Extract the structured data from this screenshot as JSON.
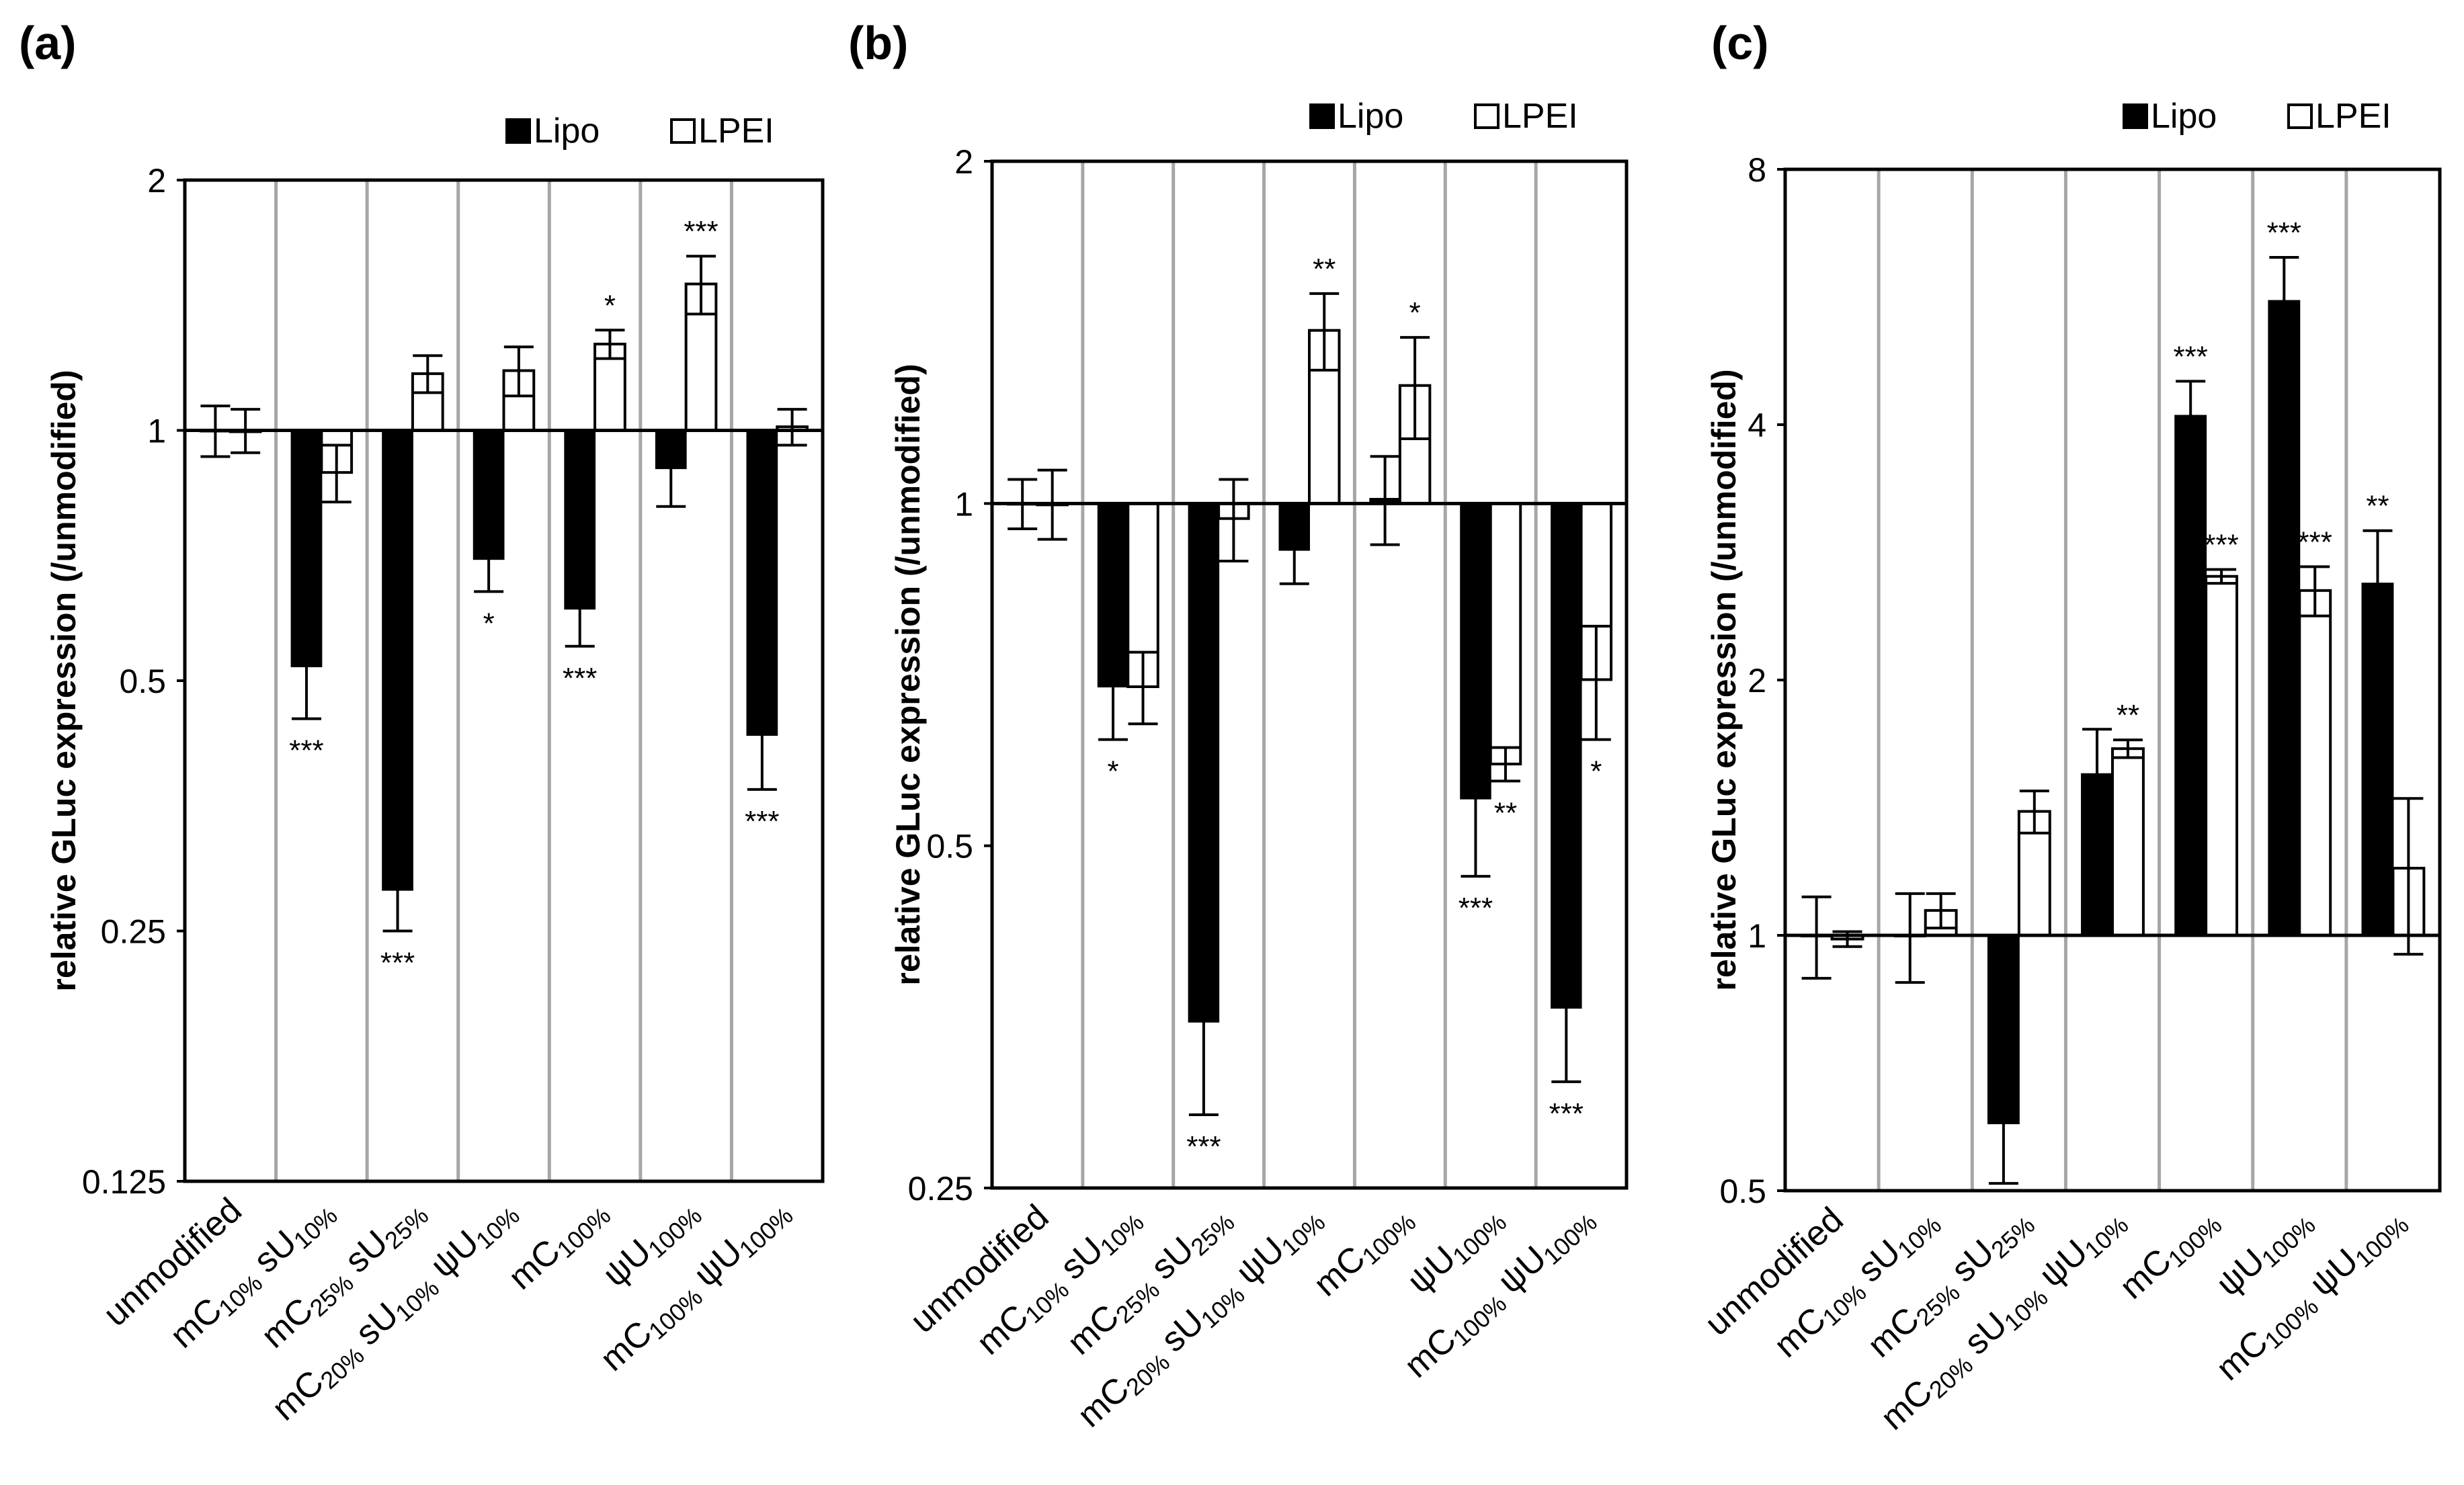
{
  "chart_data": [
    {
      "panel_label": "(a)",
      "type": "bar",
      "y_scale": "log2",
      "ylabel": "relative GLuc expression (/unmodified)",
      "ylim": [
        0.125,
        2
      ],
      "yticks": [
        {
          "value": 0.125,
          "label": "0.125"
        },
        {
          "value": 0.25,
          "label": "0.25"
        },
        {
          "value": 0.5,
          "label": "0.5"
        },
        {
          "value": 1,
          "label": "1"
        },
        {
          "value": 2,
          "label": "2"
        }
      ],
      "legend": [
        {
          "name": "Lipo",
          "style": "filled"
        },
        {
          "name": "LPEI",
          "style": "open"
        }
      ],
      "legend_position": "top-right",
      "vertical_grid": true,
      "categories": [
        {
          "parts": [
            {
              "t": "unmodified"
            }
          ]
        },
        {
          "parts": [
            {
              "t": "mC"
            },
            {
              "t": "10%",
              "sub": true
            },
            {
              "t": " sU"
            },
            {
              "t": "10%",
              "sub": true
            }
          ]
        },
        {
          "parts": [
            {
              "t": "mC"
            },
            {
              "t": "25%",
              "sub": true
            },
            {
              "t": " sU"
            },
            {
              "t": "25%",
              "sub": true
            }
          ]
        },
        {
          "parts": [
            {
              "t": "mC"
            },
            {
              "t": "20%",
              "sub": true
            },
            {
              "t": " sU"
            },
            {
              "t": "10%",
              "sub": true
            },
            {
              "t": " ψU"
            },
            {
              "t": "10%",
              "sub": true
            }
          ]
        },
        {
          "parts": [
            {
              "t": "mC"
            },
            {
              "t": "100%",
              "sub": true
            }
          ]
        },
        {
          "parts": [
            {
              "t": "ψU"
            },
            {
              "t": "100%",
              "sub": true
            }
          ]
        },
        {
          "parts": [
            {
              "t": "mC"
            },
            {
              "t": "100%",
              "sub": true
            },
            {
              "t": " ψU"
            },
            {
              "t": "100%",
              "sub": true
            }
          ]
        }
      ],
      "series": [
        {
          "name": "Lipo",
          "values": [
            1.0,
            0.52,
            0.28,
            0.7,
            0.61,
            0.9,
            0.43
          ],
          "errors": [
            0.07,
            0.07,
            0.03,
            0.06,
            0.06,
            0.09,
            0.06
          ],
          "sig": [
            "",
            "***",
            "***",
            "*",
            "***",
            "",
            "***"
          ]
        },
        {
          "name": "LPEI",
          "values": [
            1.0,
            0.89,
            1.17,
            1.18,
            1.27,
            1.5,
            1.01
          ],
          "errors": [
            0.06,
            0.07,
            0.06,
            0.08,
            0.05,
            0.12,
            0.05
          ],
          "sig": [
            "",
            "",
            "",
            "",
            "*",
            "***",
            ""
          ]
        }
      ]
    },
    {
      "panel_label": "(b)",
      "type": "bar",
      "y_scale": "log2",
      "ylabel": "relative GLuc expression (/unmodified)",
      "ylim": [
        0.25,
        2
      ],
      "yticks": [
        {
          "value": 0.25,
          "label": "0.25"
        },
        {
          "value": 0.5,
          "label": "0.5"
        },
        {
          "value": 1,
          "label": "1"
        },
        {
          "value": 2,
          "label": "2"
        }
      ],
      "legend": [
        {
          "name": "Lipo",
          "style": "filled"
        },
        {
          "name": "LPEI",
          "style": "open"
        }
      ],
      "legend_position": "top-right",
      "vertical_grid": true,
      "categories": [
        {
          "parts": [
            {
              "t": "unmodified"
            }
          ]
        },
        {
          "parts": [
            {
              "t": "mC"
            },
            {
              "t": "10%",
              "sub": true
            },
            {
              "t": " sU"
            },
            {
              "t": "10%",
              "sub": true
            }
          ]
        },
        {
          "parts": [
            {
              "t": "mC"
            },
            {
              "t": "25%",
              "sub": true
            },
            {
              "t": " sU"
            },
            {
              "t": "25%",
              "sub": true
            }
          ]
        },
        {
          "parts": [
            {
              "t": "mC"
            },
            {
              "t": "20%",
              "sub": true
            },
            {
              "t": " sU"
            },
            {
              "t": "10%",
              "sub": true
            },
            {
              "t": " ψU"
            },
            {
              "t": "10%",
              "sub": true
            }
          ]
        },
        {
          "parts": [
            {
              "t": "mC"
            },
            {
              "t": "100%",
              "sub": true
            }
          ]
        },
        {
          "parts": [
            {
              "t": "ψU"
            },
            {
              "t": "100%",
              "sub": true
            }
          ]
        },
        {
          "parts": [
            {
              "t": "mC"
            },
            {
              "t": "100%",
              "sub": true
            },
            {
              "t": " ψU"
            },
            {
              "t": "100%",
              "sub": true
            }
          ]
        }
      ],
      "series": [
        {
          "name": "Lipo",
          "values": [
            1.0,
            0.69,
            0.35,
            0.91,
            1.01,
            0.55,
            0.36
          ],
          "errors": [
            0.05,
            0.07,
            0.06,
            0.06,
            0.09,
            0.08,
            0.05
          ],
          "sig": [
            "",
            "*",
            "***",
            "",
            "",
            "***",
            "***"
          ]
        },
        {
          "name": "LPEI",
          "values": [
            1.0,
            0.69,
            0.97,
            1.42,
            1.27,
            0.59,
            0.7
          ],
          "errors": [
            0.07,
            0.05,
            0.08,
            0.11,
            0.13,
            0.02,
            0.08
          ],
          "sig": [
            "",
            "",
            "",
            "**",
            "*",
            "**",
            "*"
          ]
        }
      ]
    },
    {
      "panel_label": "(c)",
      "type": "bar",
      "y_scale": "log2",
      "ylabel": "relative GLuc expression (/unmodified)",
      "ylim": [
        0.5,
        8
      ],
      "yticks": [
        {
          "value": 0.5,
          "label": "0.5"
        },
        {
          "value": 1,
          "label": "1"
        },
        {
          "value": 2,
          "label": "2"
        },
        {
          "value": 4,
          "label": "4"
        },
        {
          "value": 8,
          "label": "8"
        }
      ],
      "legend": [
        {
          "name": "Lipo",
          "style": "filled"
        },
        {
          "name": "LPEI",
          "style": "open"
        }
      ],
      "legend_position": "top-right",
      "vertical_grid": true,
      "categories": [
        {
          "parts": [
            {
              "t": "unmodified"
            }
          ]
        },
        {
          "parts": [
            {
              "t": "mC"
            },
            {
              "t": "10%",
              "sub": true
            },
            {
              "t": " sU"
            },
            {
              "t": "10%",
              "sub": true
            }
          ]
        },
        {
          "parts": [
            {
              "t": "mC"
            },
            {
              "t": "25%",
              "sub": true
            },
            {
              "t": " sU"
            },
            {
              "t": "25%",
              "sub": true
            }
          ]
        },
        {
          "parts": [
            {
              "t": "mC"
            },
            {
              "t": "20%",
              "sub": true
            },
            {
              "t": " sU"
            },
            {
              "t": "10%",
              "sub": true
            },
            {
              "t": " ψU"
            },
            {
              "t": "10%",
              "sub": true
            }
          ]
        },
        {
          "parts": [
            {
              "t": "mC"
            },
            {
              "t": "100%",
              "sub": true
            }
          ]
        },
        {
          "parts": [
            {
              "t": "ψU"
            },
            {
              "t": "100%",
              "sub": true
            }
          ]
        },
        {
          "parts": [
            {
              "t": "mC"
            },
            {
              "t": "100%",
              "sub": true
            },
            {
              "t": " ψU"
            },
            {
              "t": "100%",
              "sub": true
            }
          ]
        }
      ],
      "series": [
        {
          "name": "Lipo",
          "values": [
            1.0,
            1.0,
            0.6,
            1.55,
            4.1,
            5.6,
            2.6
          ],
          "errors": [
            0.11,
            0.12,
            0.09,
            0.2,
            0.4,
            0.7,
            0.4
          ],
          "sig": [
            "",
            "",
            "",
            "",
            "***",
            "***",
            "**"
          ]
        },
        {
          "name": "LPEI",
          "values": [
            0.99,
            1.07,
            1.4,
            1.66,
            2.65,
            2.55,
            1.2
          ],
          "errors": [
            0.02,
            0.05,
            0.08,
            0.04,
            0.05,
            0.17,
            0.25
          ],
          "sig": [
            "",
            "",
            "",
            "**",
            "***",
            "***",
            ""
          ]
        }
      ]
    }
  ]
}
